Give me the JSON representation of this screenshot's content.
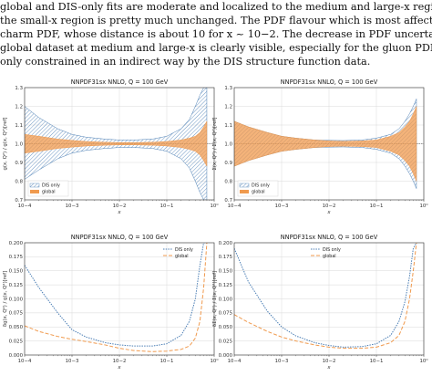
{
  "document": {
    "lines": [
      "global and DIS-only fits are moderate and localized to the medium and large-x region, wh",
      "the small-x region is pretty much unchanged. The PDF flavour which is most affected is th",
      "charm PDF, whose distance is about 10 for x ~ 10−2. The decrease in PDF uncertainties in th",
      "global dataset at medium and large-x is clearly visible, especially for the gluon PDF which is",
      "only constrained in an indirect way by the DIS structure function data."
    ]
  },
  "colors": {
    "dis": "#4c7fb5",
    "global": "#f09a4e"
  },
  "chart_data": [
    {
      "type": "area",
      "title": "NNPDF31sx NNLO, Q = 100 GeV",
      "xlabel": "x",
      "ylabel": "g(x, Q²) / g(x, Q²)[ref]",
      "xscale": "log",
      "xlim": [
        0.0001,
        1
      ],
      "ylim": [
        0.7,
        1.3
      ],
      "grid": true,
      "xticks": [
        "10−4",
        "10−3",
        "10−2",
        "10−1",
        "10⁰"
      ],
      "yticks": [
        "0.7",
        "0.8",
        "0.9",
        "1.0",
        "1.1",
        "1.2",
        "1.3"
      ],
      "legend": {
        "placement": "bottom-left",
        "entries": [
          "DIS only",
          "global"
        ]
      },
      "x": [
        0.0001,
        0.0002,
        0.0005,
        0.001,
        0.002,
        0.005,
        0.01,
        0.02,
        0.05,
        0.1,
        0.2,
        0.3,
        0.4,
        0.5,
        0.6,
        0.7
      ],
      "series": [
        {
          "name": "DIS only",
          "hatched": true,
          "upper": [
            1.2,
            1.14,
            1.08,
            1.05,
            1.035,
            1.025,
            1.02,
            1.02,
            1.025,
            1.04,
            1.08,
            1.13,
            1.2,
            1.26,
            1.3,
            1.3
          ],
          "lower": [
            0.81,
            0.86,
            0.92,
            0.95,
            0.965,
            0.975,
            0.98,
            0.98,
            0.975,
            0.96,
            0.92,
            0.87,
            0.8,
            0.74,
            0.7,
            0.7
          ]
        },
        {
          "name": "global",
          "upper": [
            1.05,
            1.04,
            1.025,
            1.018,
            1.012,
            1.008,
            1.006,
            1.006,
            1.008,
            1.012,
            1.02,
            1.03,
            1.04,
            1.06,
            1.09,
            1.12
          ],
          "lower": [
            0.95,
            0.96,
            0.975,
            0.982,
            0.988,
            0.992,
            0.994,
            0.994,
            0.992,
            0.988,
            0.98,
            0.97,
            0.96,
            0.94,
            0.91,
            0.88
          ]
        }
      ]
    },
    {
      "type": "area",
      "title": "NNPDF31sx NNLO, Q = 100 GeV",
      "xlabel": "x",
      "ylabel": "Σ(x, Q²) / Σ(x, Q²)[ref]",
      "xscale": "log",
      "xlim": [
        0.0001,
        1
      ],
      "ylim": [
        0.7,
        1.3
      ],
      "grid": true,
      "xticks": [
        "10−4",
        "10−3",
        "10−2",
        "10−1",
        "10⁰"
      ],
      "yticks": [
        "0.7",
        "0.8",
        "0.9",
        "1.0",
        "1.1",
        "1.2",
        "1.3"
      ],
      "legend": {
        "placement": "bottom-left",
        "entries": [
          "DIS only",
          "global"
        ]
      },
      "x": [
        0.0001,
        0.0002,
        0.0005,
        0.001,
        0.002,
        0.005,
        0.01,
        0.02,
        0.05,
        0.1,
        0.2,
        0.3,
        0.4,
        0.5,
        0.6,
        0.7
      ],
      "series": [
        {
          "name": "DIS only",
          "hatched": true,
          "upper": [
            1.12,
            1.09,
            1.06,
            1.04,
            1.03,
            1.02,
            1.018,
            1.017,
            1.02,
            1.03,
            1.05,
            1.08,
            1.12,
            1.16,
            1.2,
            1.24
          ],
          "lower": [
            0.88,
            0.91,
            0.94,
            0.96,
            0.97,
            0.98,
            0.982,
            0.983,
            0.98,
            0.97,
            0.95,
            0.92,
            0.88,
            0.84,
            0.8,
            0.76
          ]
        },
        {
          "name": "global",
          "upper": [
            1.12,
            1.09,
            1.06,
            1.04,
            1.03,
            1.02,
            1.015,
            1.013,
            1.015,
            1.02,
            1.04,
            1.06,
            1.09,
            1.12,
            1.16,
            1.2
          ],
          "lower": [
            0.88,
            0.91,
            0.94,
            0.96,
            0.97,
            0.98,
            0.985,
            0.987,
            0.985,
            0.98,
            0.96,
            0.94,
            0.91,
            0.88,
            0.84,
            0.8
          ]
        }
      ]
    },
    {
      "type": "line",
      "title": "NNPDF31sx NNLO, Q = 100 GeV",
      "xlabel": "x",
      "ylabel": "δg(x, Q²) / g(x, Q²)[ref]",
      "xscale": "log",
      "xlim": [
        0.0001,
        1
      ],
      "ylim": [
        0,
        0.2
      ],
      "grid": true,
      "xticks": [
        "10−4",
        "10−3",
        "10−2",
        "10−1",
        "10⁰"
      ],
      "yticks": [
        "0.000",
        "0.025",
        "0.050",
        "0.075",
        "0.100",
        "0.125",
        "0.150",
        "0.175",
        "0.200"
      ],
      "legend": {
        "placement": "top-right",
        "entries": [
          "DIS only",
          "global"
        ]
      },
      "x": [
        0.0001,
        0.0002,
        0.0005,
        0.001,
        0.002,
        0.005,
        0.01,
        0.02,
        0.05,
        0.1,
        0.2,
        0.3,
        0.4,
        0.5,
        0.6,
        0.7
      ],
      "series": [
        {
          "name": "DIS only",
          "style": "dotted",
          "values": [
            0.16,
            0.12,
            0.075,
            0.045,
            0.032,
            0.022,
            0.018,
            0.016,
            0.016,
            0.02,
            0.035,
            0.06,
            0.1,
            0.16,
            0.2,
            0.2
          ]
        },
        {
          "name": "global",
          "style": "dashed",
          "values": [
            0.052,
            0.042,
            0.033,
            0.028,
            0.024,
            0.018,
            0.012,
            0.008,
            0.006,
            0.007,
            0.01,
            0.016,
            0.03,
            0.06,
            0.12,
            0.2
          ]
        }
      ]
    },
    {
      "type": "line",
      "title": "NNPDF31sx NNLO, Q = 100 GeV",
      "xlabel": "x",
      "ylabel": "δΣ(x, Q²) / Σ(x, Q²)[ref]",
      "xscale": "log",
      "xlim": [
        0.0001,
        1
      ],
      "ylim": [
        0,
        0.2
      ],
      "grid": true,
      "xticks": [
        "10−4",
        "10−3",
        "10−2",
        "10−1",
        "10⁰"
      ],
      "yticks": [
        "0.000",
        "0.025",
        "0.050",
        "0.075",
        "0.100",
        "0.125",
        "0.150",
        "0.175",
        "0.200"
      ],
      "legend": {
        "placement": "top-center",
        "entries": [
          "DIS only",
          "global"
        ]
      },
      "x": [
        0.0001,
        0.0002,
        0.0005,
        0.001,
        0.002,
        0.005,
        0.01,
        0.02,
        0.05,
        0.1,
        0.2,
        0.3,
        0.4,
        0.5,
        0.6,
        0.7
      ],
      "series": [
        {
          "name": "DIS only",
          "style": "dotted",
          "values": [
            0.19,
            0.13,
            0.078,
            0.05,
            0.034,
            0.022,
            0.017,
            0.014,
            0.015,
            0.02,
            0.035,
            0.06,
            0.095,
            0.14,
            0.19,
            0.2
          ]
        },
        {
          "name": "global",
          "style": "dashed",
          "values": [
            0.072,
            0.058,
            0.042,
            0.032,
            0.025,
            0.018,
            0.014,
            0.012,
            0.012,
            0.014,
            0.022,
            0.035,
            0.06,
            0.1,
            0.15,
            0.2
          ]
        }
      ]
    }
  ]
}
